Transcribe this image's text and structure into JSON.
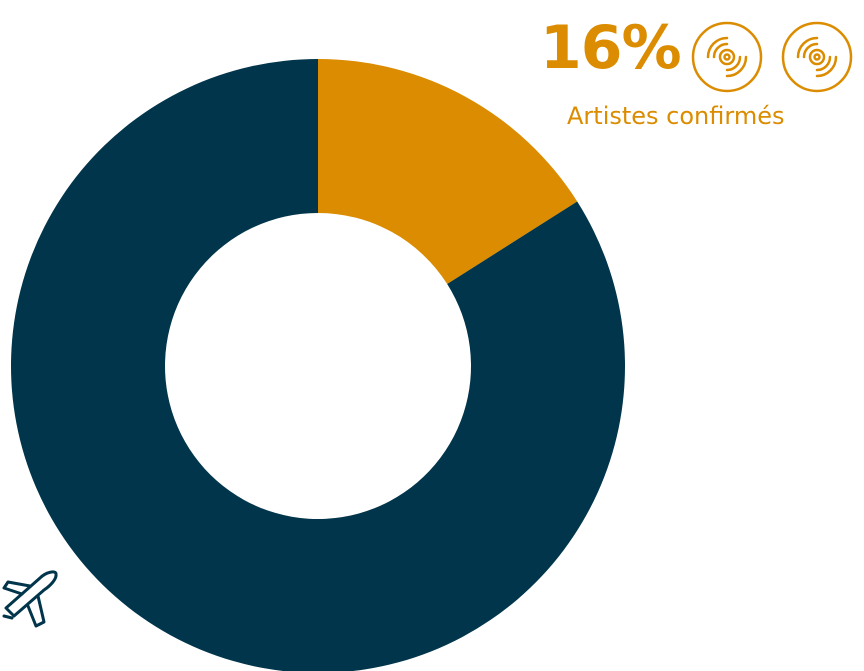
{
  "chart_data": {
    "type": "pie",
    "donut": true,
    "categories": [
      "Artistes confirmés",
      ""
    ],
    "values": [
      16,
      84
    ],
    "colors": [
      "#db8c00",
      "#01354b"
    ]
  },
  "annotation": {
    "value_text": "16%",
    "label_text": "Artistes confirmés",
    "color": "#db8c00"
  },
  "icons": {
    "disc": "vinyl-disc-icon",
    "plane": "airplane-icon"
  }
}
